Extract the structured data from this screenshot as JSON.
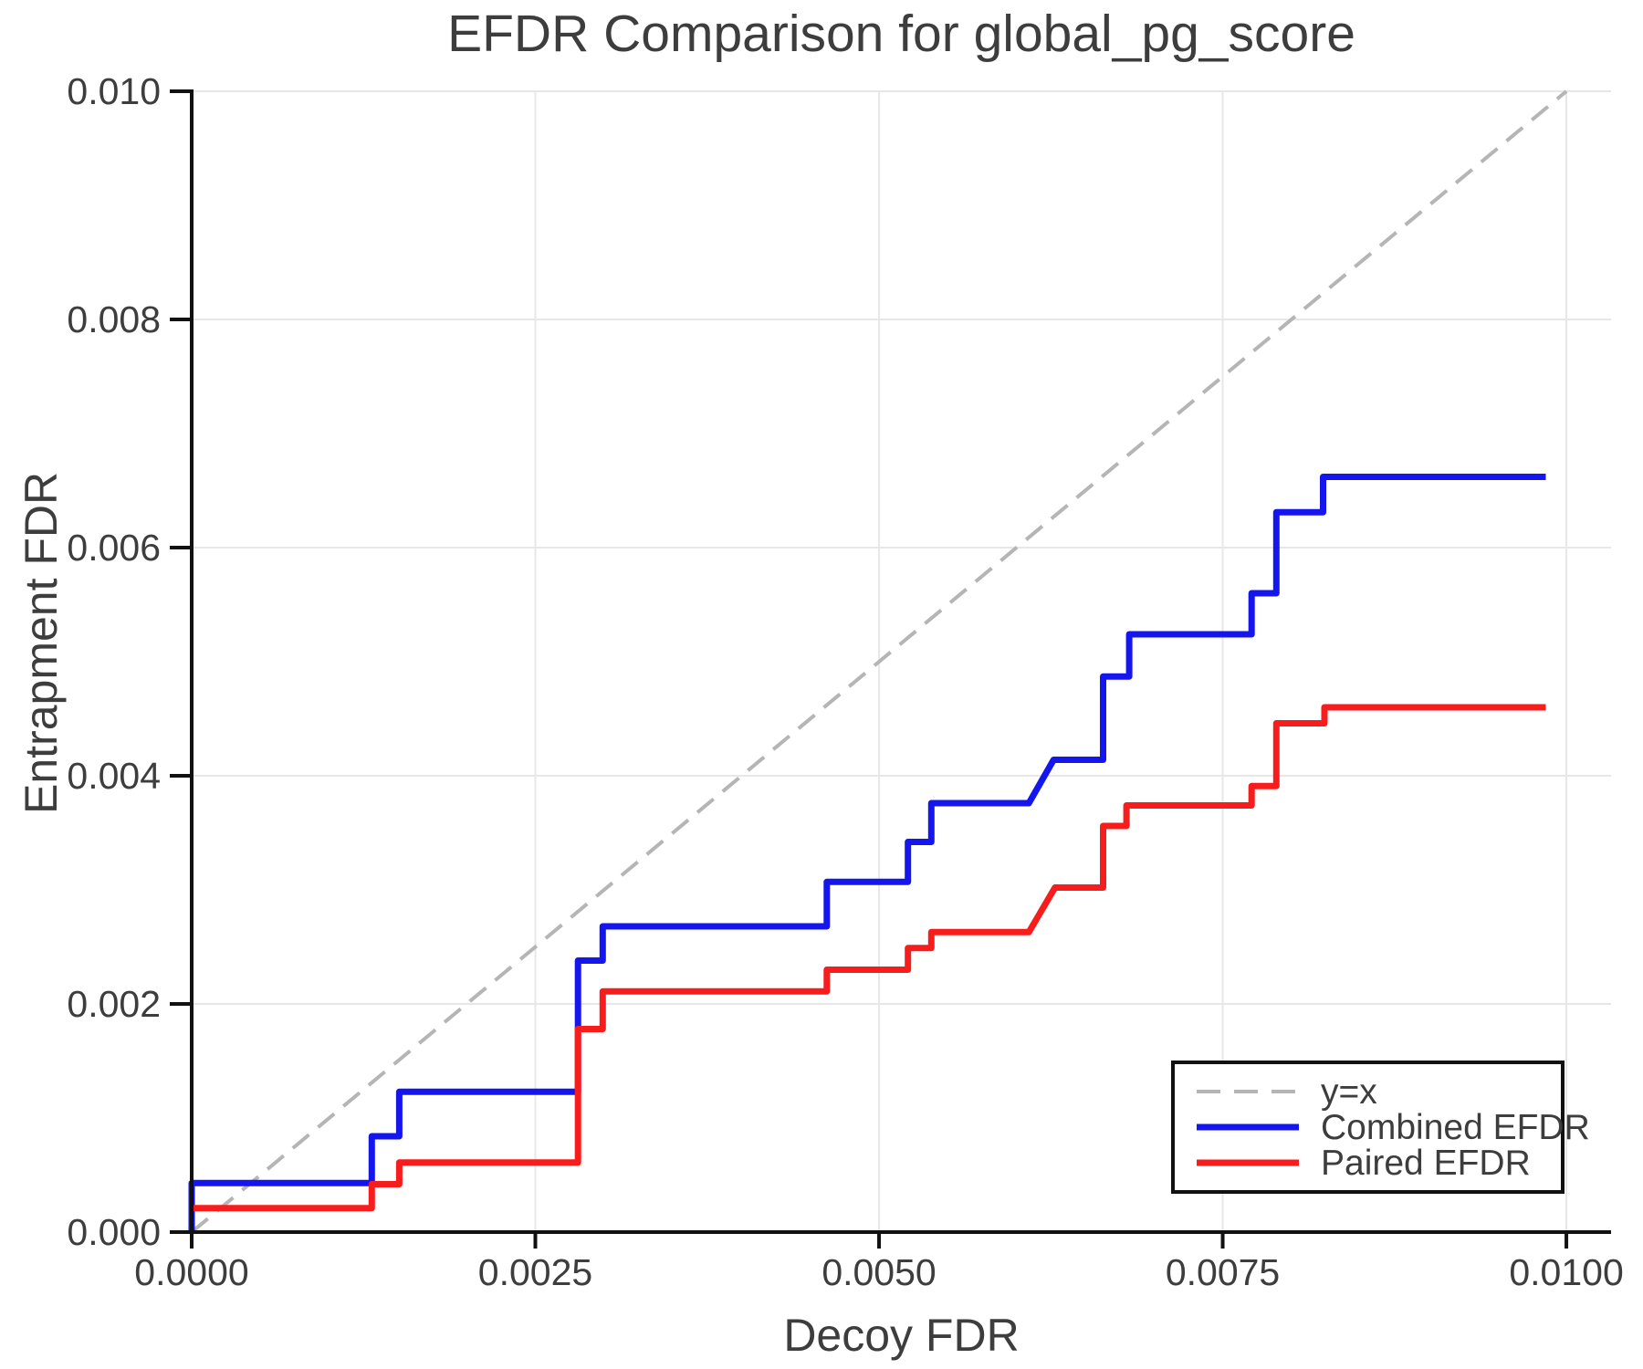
{
  "chart_data": {
    "type": "line",
    "title": "EFDR Comparison for global_pg_score",
    "xlabel": "Decoy FDR",
    "ylabel": "Entrapment FDR",
    "xlim": [
      0,
      0.010325
    ],
    "ylim": [
      0,
      0.01
    ],
    "grid": true,
    "grid_color": "#e7e7e7",
    "spine_color": "#111111",
    "tick_label_color": "#3d3d3d",
    "xticks": {
      "values": [
        0,
        0.0025,
        0.005,
        0.0075,
        0.01
      ],
      "labels": [
        "0.0000",
        "0.0025",
        "0.0050",
        "0.0075",
        "0.0100"
      ]
    },
    "yticks": {
      "values": [
        0,
        0.002,
        0.004,
        0.006,
        0.008,
        0.01
      ],
      "labels": [
        "0.000",
        "0.002",
        "0.004",
        "0.006",
        "0.008",
        "0.010"
      ]
    },
    "legend": {
      "position": "lower right",
      "entries": [
        {
          "label": "y=x",
          "series": 0
        },
        {
          "label": "Combined EFDR",
          "series": 1
        },
        {
          "label": "Paired EFDR",
          "series": 2
        }
      ]
    },
    "series": [
      {
        "name": "y=x",
        "style": "dashed",
        "color": "#b5b5b5",
        "width": 4,
        "points": [
          [
            0,
            0
          ],
          [
            0.01,
            0.01
          ]
        ]
      },
      {
        "name": "Combined EFDR",
        "style": "solid",
        "color": "#1515ee",
        "width": 7,
        "points": [
          [
            0,
            0
          ],
          [
            0,
            0.00043
          ],
          [
            0.00131,
            0.00043
          ],
          [
            0.00131,
            0.00084
          ],
          [
            0.00151,
            0.00084
          ],
          [
            0.00151,
            0.00123
          ],
          [
            0.00281,
            0.00123
          ],
          [
            0.00281,
            0.00238
          ],
          [
            0.00299,
            0.00238
          ],
          [
            0.00299,
            0.00268
          ],
          [
            0.00462,
            0.00268
          ],
          [
            0.00462,
            0.00307
          ],
          [
            0.00521,
            0.00307
          ],
          [
            0.00521,
            0.00342
          ],
          [
            0.00538,
            0.00342
          ],
          [
            0.00538,
            0.00376
          ],
          [
            0.00609,
            0.00376
          ],
          [
            0.00627,
            0.00414
          ],
          [
            0.00663,
            0.00414
          ],
          [
            0.00663,
            0.00487
          ],
          [
            0.00682,
            0.00487
          ],
          [
            0.00682,
            0.00524
          ],
          [
            0.00771,
            0.00524
          ],
          [
            0.00771,
            0.0056
          ],
          [
            0.00789,
            0.0056
          ],
          [
            0.00789,
            0.00631
          ],
          [
            0.00823,
            0.00631
          ],
          [
            0.00823,
            0.00662
          ],
          [
            0.00985,
            0.00662
          ]
        ]
      },
      {
        "name": "Paired EFDR",
        "style": "solid",
        "color": "#f81d1d",
        "width": 7,
        "points": [
          [
            0,
            0.00021
          ],
          [
            0.00131,
            0.00021
          ],
          [
            0.00131,
            0.00042
          ],
          [
            0.00151,
            0.00042
          ],
          [
            0.00151,
            0.00061
          ],
          [
            0.00281,
            0.00061
          ],
          [
            0.00281,
            0.00178
          ],
          [
            0.00299,
            0.00178
          ],
          [
            0.00299,
            0.00211
          ],
          [
            0.00462,
            0.00211
          ],
          [
            0.00462,
            0.0023
          ],
          [
            0.00521,
            0.0023
          ],
          [
            0.00521,
            0.00249
          ],
          [
            0.00538,
            0.00249
          ],
          [
            0.00538,
            0.00263
          ],
          [
            0.00609,
            0.00263
          ],
          [
            0.00628,
            0.00302
          ],
          [
            0.00663,
            0.00302
          ],
          [
            0.00663,
            0.00356
          ],
          [
            0.0068,
            0.00356
          ],
          [
            0.0068,
            0.00374
          ],
          [
            0.00771,
            0.00374
          ],
          [
            0.00771,
            0.00391
          ],
          [
            0.00789,
            0.00391
          ],
          [
            0.00789,
            0.00446
          ],
          [
            0.00824,
            0.00446
          ],
          [
            0.00824,
            0.0046
          ],
          [
            0.00985,
            0.0046
          ]
        ]
      }
    ]
  }
}
